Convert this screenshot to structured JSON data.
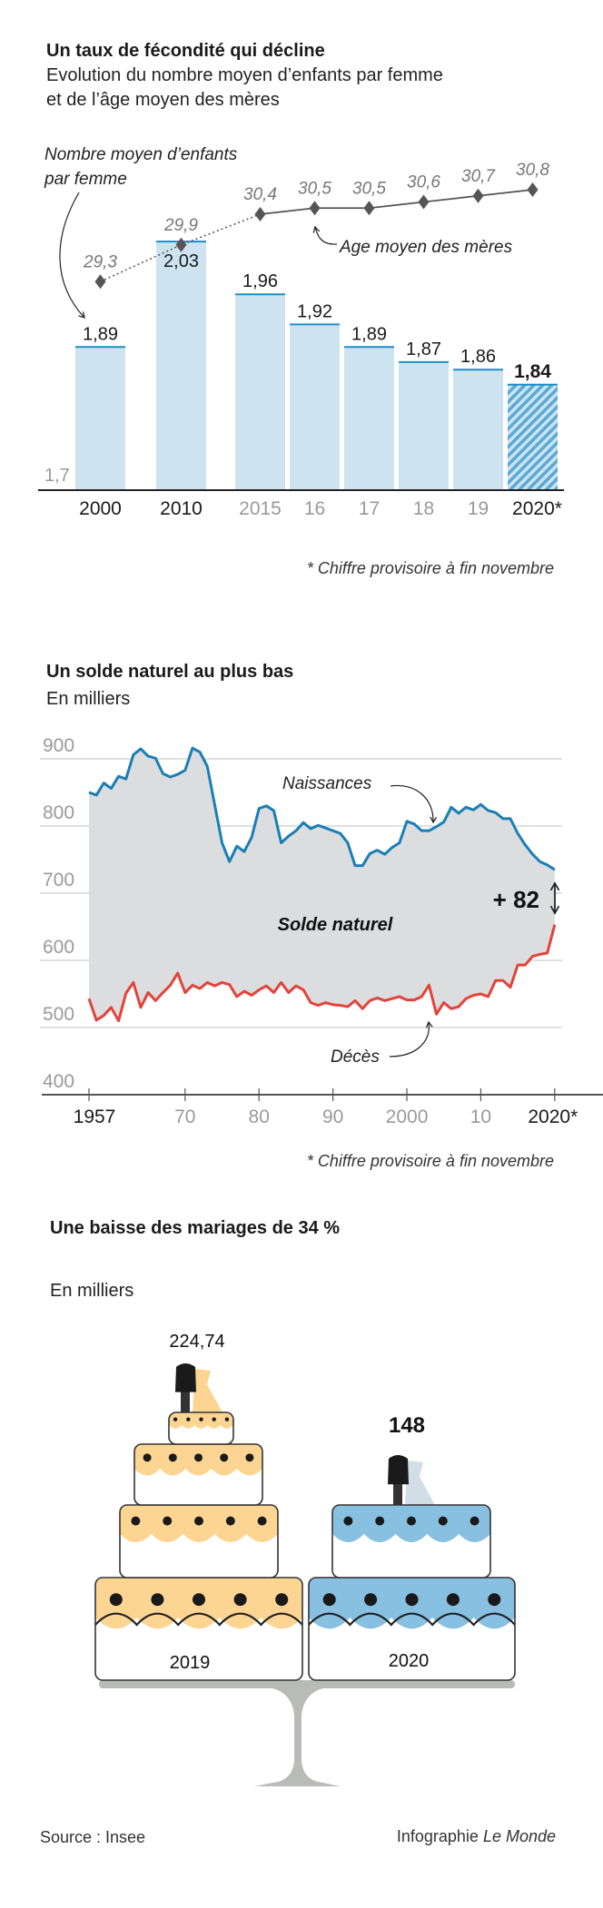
{
  "colors": {
    "bar": "#cde4f0",
    "bar_top": "#1c8fc6",
    "hatch": "#5aaad6",
    "births": "#1a7fb6",
    "deaths": "#e2433b",
    "solde_fill": "#dcdddf",
    "grid": "#d6d6d6",
    "orange": "#fdd593",
    "blue_cake": "#87c0e0",
    "stand": "#b9bbb9",
    "age": "#555555"
  },
  "chart_data": [
    {
      "type": "bar",
      "title": "Un taux de fécondité qui décline",
      "subtitle_lines": [
        "Evolution du nombre moyen d’enfants par femme",
        "et de l’âge moyen des mères"
      ],
      "categories": [
        "2000",
        "2010",
        "2015",
        "16",
        "17",
        "18",
        "19",
        "2020*"
      ],
      "category_emphasis": [
        true,
        true,
        false,
        false,
        false,
        false,
        false,
        true
      ],
      "series": [
        {
          "name": "Nombre moyen d’enfants par femme",
          "values": [
            1.89,
            2.03,
            1.96,
            1.92,
            1.89,
            1.87,
            1.86,
            1.84
          ],
          "labels": [
            "1,89",
            "2,03",
            "1,96",
            "1,92",
            "1,89",
            "1,87",
            "1,86",
            "1,84"
          ]
        },
        {
          "name": "Age moyen des mères",
          "values": [
            29.3,
            29.9,
            30.4,
            30.5,
            30.5,
            30.6,
            30.7,
            30.8
          ],
          "labels": [
            "29,3",
            "29,9",
            "30,4",
            "30,5",
            "30,5",
            "30,6",
            "30,7",
            "30,8"
          ]
        }
      ],
      "ylim": [
        1.7,
        2.1
      ],
      "ymin_label": "1,7",
      "annotations": {
        "bars_label_line1": "Nombre moyen d’enfants",
        "bars_label_line2": "par femme",
        "age_label": "Age moyen des mères"
      },
      "footnote": "* Chiffre provisoire à fin novembre"
    },
    {
      "type": "line",
      "title": "Un solde naturel au plus bas",
      "subtitle": "En milliers",
      "x": [
        1957,
        1958,
        1959,
        1960,
        1961,
        1962,
        1963,
        1964,
        1965,
        1966,
        1967,
        1968,
        1969,
        1970,
        1971,
        1972,
        1973,
        1974,
        1975,
        1976,
        1977,
        1978,
        1979,
        1980,
        1981,
        1982,
        1983,
        1984,
        1985,
        1986,
        1987,
        1988,
        1989,
        1990,
        1991,
        1992,
        1993,
        1994,
        1995,
        1996,
        1997,
        1998,
        1999,
        2000,
        2001,
        2002,
        2003,
        2004,
        2005,
        2006,
        2007,
        2008,
        2009,
        2010,
        2011,
        2012,
        2013,
        2014,
        2015,
        2016,
        2017,
        2018,
        2019,
        2020
      ],
      "series": [
        {
          "name": "Naissances",
          "values": [
            850,
            846,
            864,
            856,
            874,
            870,
            906,
            915,
            904,
            901,
            878,
            873,
            877,
            883,
            916,
            910,
            889,
            832,
            775,
            747,
            770,
            762,
            783,
            826,
            830,
            823,
            775,
            785,
            793,
            805,
            796,
            801,
            797,
            793,
            789,
            775,
            741,
            741,
            759,
            764,
            758,
            768,
            775,
            807,
            803,
            793,
            793,
            799,
            806,
            828,
            819,
            828,
            824,
            832,
            823,
            820,
            811,
            811,
            789,
            772,
            758,
            747,
            742,
            735
          ]
        },
        {
          "name": "Décès",
          "values": [
            543,
            511,
            518,
            530,
            510,
            551,
            567,
            530,
            552,
            540,
            552,
            563,
            581,
            552,
            563,
            558,
            567,
            562,
            567,
            564,
            546,
            554,
            548,
            556,
            562,
            552,
            567,
            552,
            562,
            556,
            537,
            533,
            537,
            534,
            533,
            531,
            540,
            528,
            540,
            544,
            540,
            543,
            546,
            541,
            541,
            546,
            563,
            520,
            537,
            528,
            531,
            543,
            548,
            550,
            546,
            570,
            570,
            560,
            593,
            593,
            606,
            609,
            611,
            653
          ]
        }
      ],
      "ylim": [
        400,
        920
      ],
      "yticks": [
        "400",
        "500",
        "600",
        "700",
        "800",
        "900"
      ],
      "xtick_values": [
        1957,
        1970,
        1980,
        1990,
        2000,
        2010,
        2020
      ],
      "xtick_labels": [
        "1957",
        "70",
        "80",
        "90",
        "2000",
        "10",
        "2020*"
      ],
      "xtick_emphasis": [
        true,
        false,
        false,
        false,
        false,
        false,
        true
      ],
      "annotations": {
        "area_label": "Solde naturel",
        "gap_label": "+ 82"
      },
      "footnote": "* Chiffre provisoire à fin novembre"
    },
    {
      "type": "bar",
      "title": "Une baisse des mariages de 34 %",
      "subtitle": "En milliers",
      "categories": [
        "2019",
        "2020"
      ],
      "values": [
        224.74,
        148
      ],
      "labels": [
        "224,74",
        "148"
      ]
    }
  ],
  "footer": {
    "source": "Source : Insee",
    "credit_prefix": "Infographie ",
    "credit_brand": "Le Monde"
  }
}
